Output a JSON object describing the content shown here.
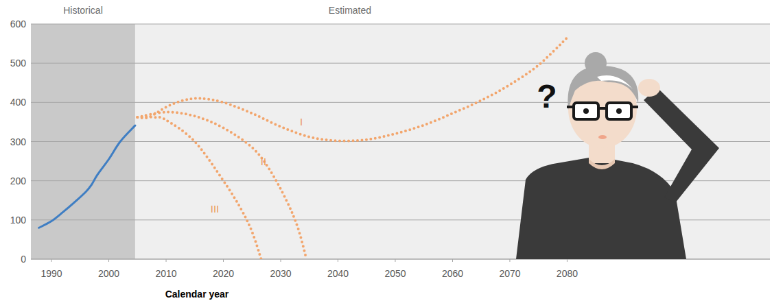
{
  "chart_data": {
    "type": "line",
    "x_label": "Calendar year",
    "xlim": [
      1986.4,
      2115.4
    ],
    "xticks": [
      1990,
      2000,
      2010,
      2020,
      2030,
      2040,
      2050,
      2060,
      2070,
      2080
    ],
    "ylim": [
      0,
      600
    ],
    "yticks": [
      0,
      100,
      200,
      300,
      400,
      500,
      600
    ],
    "grid": true,
    "regions": [
      {
        "label": "Historical",
        "from": 1986.4,
        "to": 2004.6
      },
      {
        "label": "Estimated",
        "from": 2004.6,
        "to": 2115.4
      }
    ],
    "series": [
      {
        "x": [
          1987.8,
          1990,
          1992,
          1994,
          1996,
          1997,
          1998,
          2000,
          2002,
          2004.6
        ],
        "values": [
          80,
          97,
          120,
          145,
          172,
          190,
          215,
          255,
          300,
          341
        ],
        "color": "#3f7ec3",
        "line_style": "solid"
      },
      {
        "x": [
          2005,
          2007,
          2010,
          2013,
          2016,
          2020,
          2025,
          2030,
          2035,
          2040,
          2045,
          2050,
          2055,
          2060,
          2065,
          2070,
          2075,
          2080
        ],
        "values": [
          362,
          362,
          388,
          405,
          410,
          400,
          372,
          338,
          312,
          302,
          305,
          320,
          342,
          372,
          405,
          445,
          495,
          565
        ],
        "color": "#f2a56c",
        "line_style": "dotted"
      },
      {
        "x": [
          2005,
          2010,
          2015,
          2020,
          2025,
          2028,
          2031,
          2033,
          2034.5
        ],
        "values": [
          362,
          375,
          365,
          335,
          285,
          230,
          150,
          80,
          0
        ],
        "color": "#f2a56c",
        "line_style": "dotted"
      },
      {
        "x": [
          2005,
          2008,
          2010,
          2015,
          2020,
          2023,
          2025,
          2026.6
        ],
        "values": [
          362,
          362,
          355,
          300,
          200,
          130,
          70,
          0
        ],
        "color": "#f2a56c",
        "line_style": "dotted"
      }
    ],
    "annotations": [
      {
        "text": "I",
        "x": 2033.6,
        "y": 350
      },
      {
        "text": "II",
        "x": 2027,
        "y": 248
      },
      {
        "text": "III",
        "x": 2018.5,
        "y": 128
      }
    ],
    "illustration_text": "?"
  }
}
